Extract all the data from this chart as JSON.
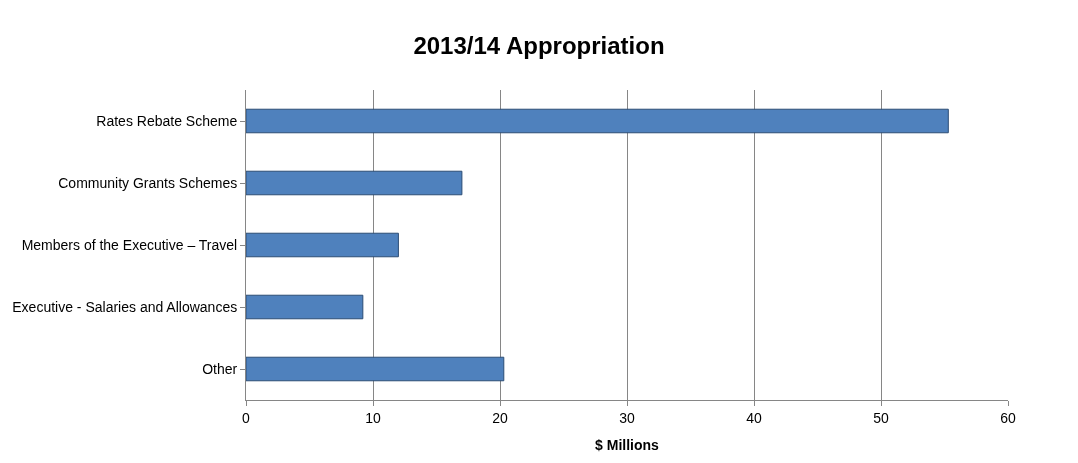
{
  "chart_data": {
    "type": "bar",
    "orientation": "horizontal",
    "title": "2013/14 Appropriation",
    "xlabel": "$ Millions",
    "categories": [
      "Rates Rebate Scheme",
      "Community Grants Schemes",
      "Members of the Executive – Travel",
      "Executive - Salaries and Allowances",
      "Other"
    ],
    "values": [
      55.3,
      17,
      12,
      9.2,
      20.3
    ],
    "color": "#4f81bd",
    "xlim": [
      0,
      60
    ],
    "xticks": [
      0,
      10,
      20,
      30,
      40,
      50,
      60
    ],
    "grid": "x"
  }
}
